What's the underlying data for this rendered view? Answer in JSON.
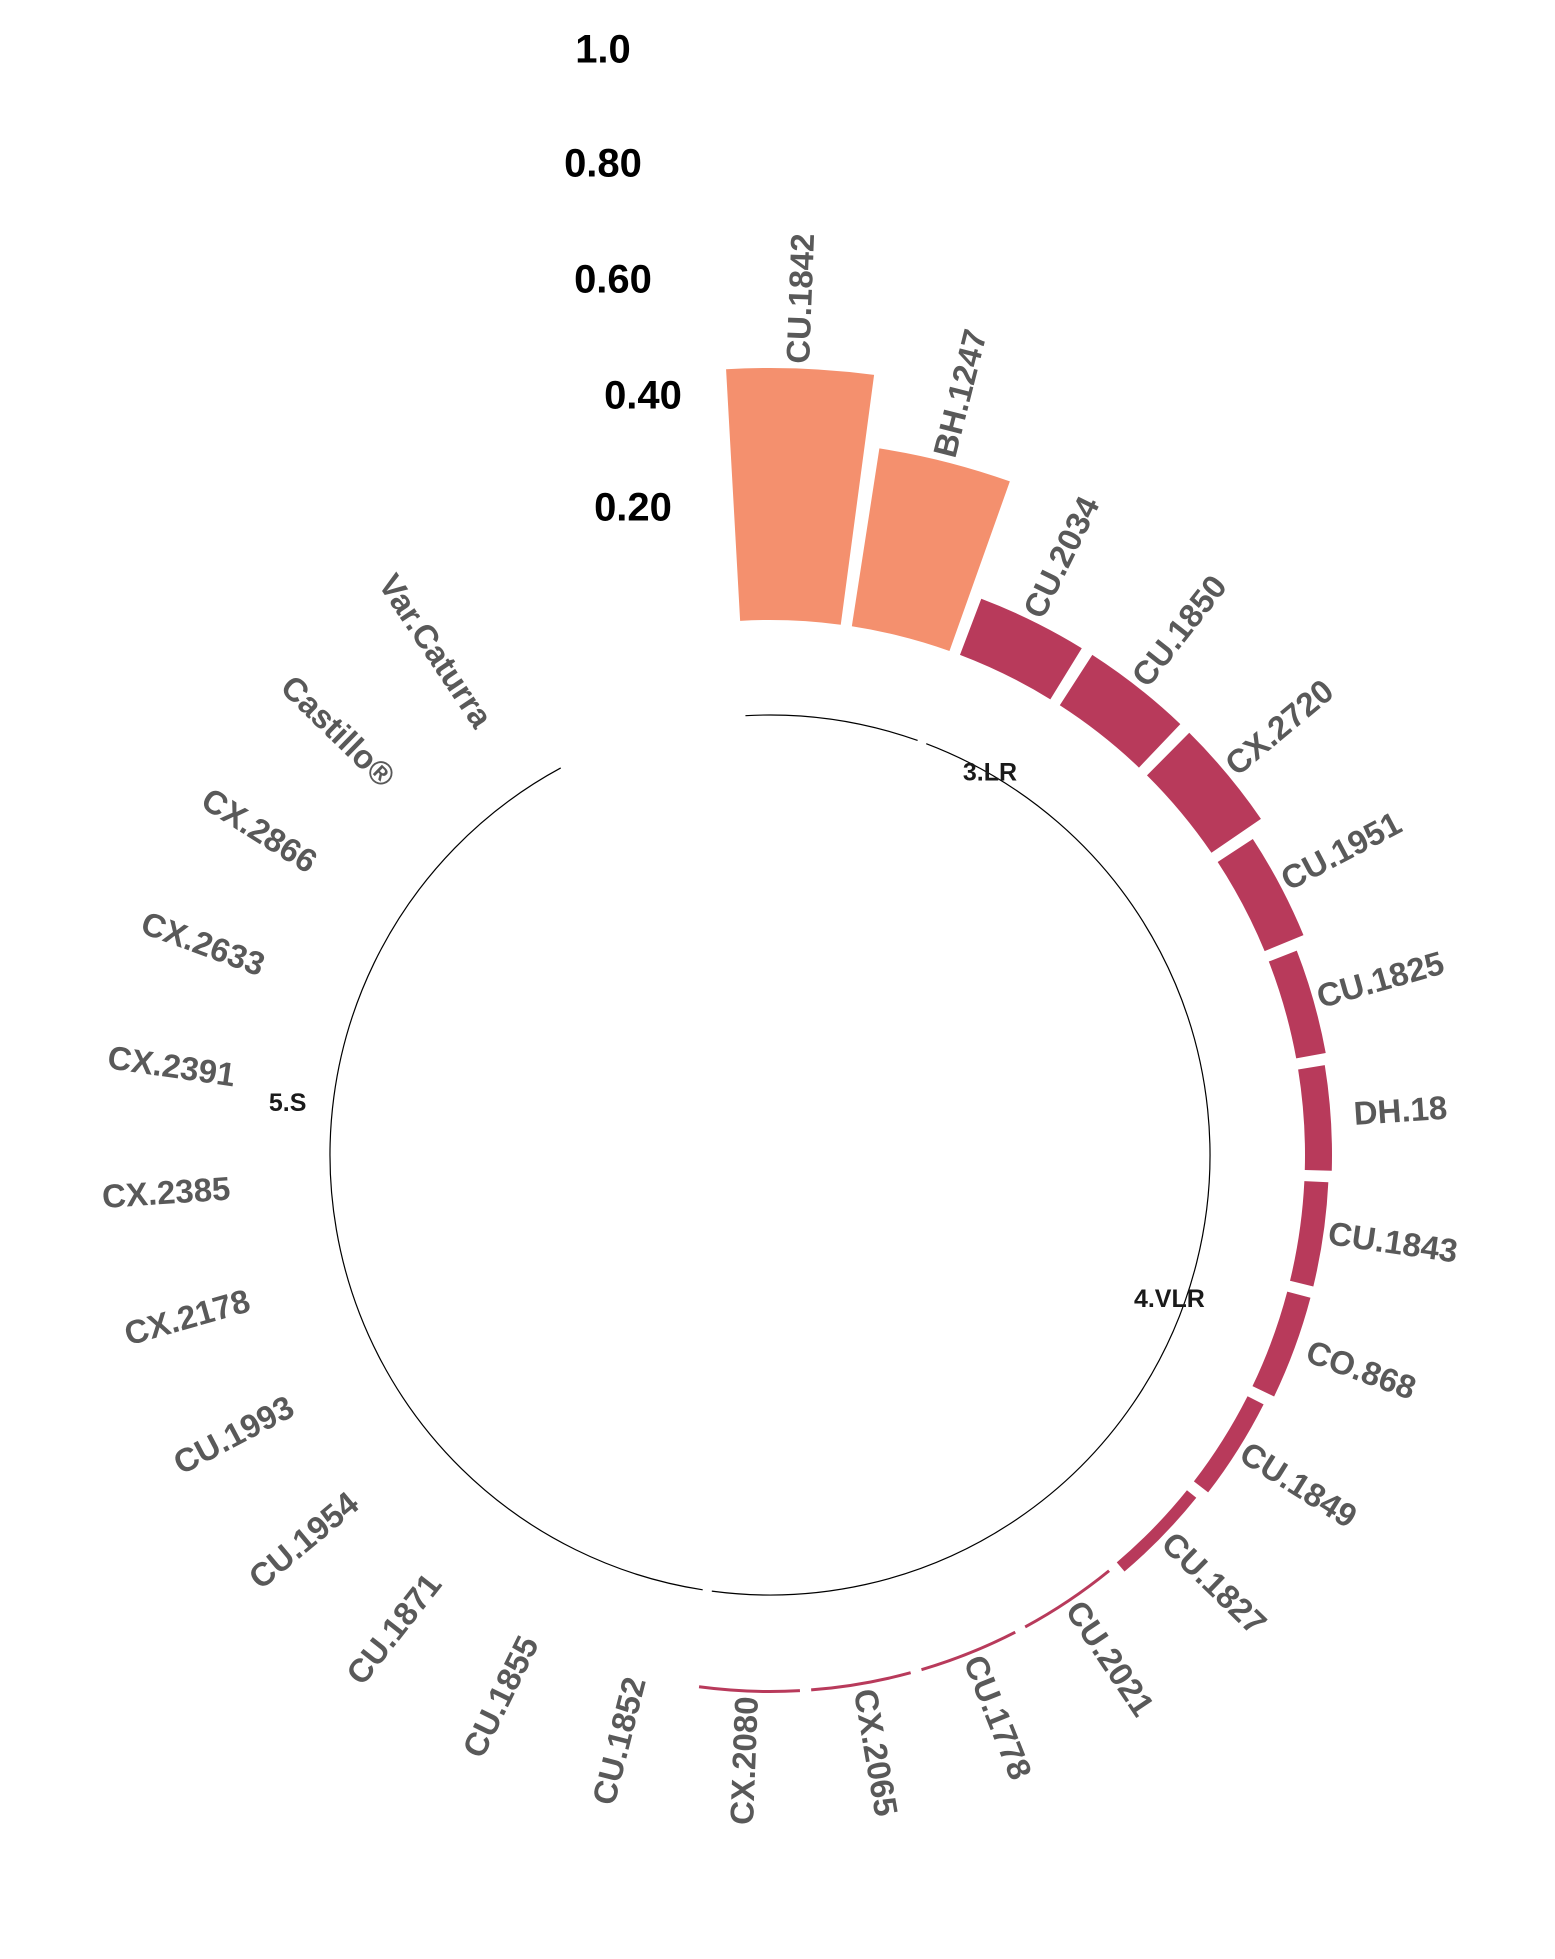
{
  "chart_data": {
    "type": "bar",
    "subtype": "circular",
    "title": "",
    "radial_axis_labels": [
      "0.20",
      "0.40",
      "0.60",
      "0.80",
      "1.0"
    ],
    "ylim": [
      0,
      1.0
    ],
    "groups": [
      {
        "name": "3.LR",
        "color": "#F4906E",
        "categories": [
          "CU.1842",
          "BH.1247"
        ],
        "values": [
          0.42,
          0.3
        ]
      },
      {
        "name": "4.VLR",
        "color": "#B83A5B",
        "categories": [
          "CU.2034",
          "CU.1850",
          "CX.2720",
          "CU.1951",
          "CU.1825",
          "DH.18",
          "CU.1843",
          "CO.868",
          "CU.1849",
          "CU.1827",
          "CU.2021",
          "CU.1778",
          "CX.2065",
          "CX.2080"
        ],
        "values": [
          0.1,
          0.1,
          0.1,
          0.07,
          0.05,
          0.045,
          0.04,
          0.04,
          0.03,
          0.02,
          0.004,
          0.003,
          0.003,
          0.002
        ]
      },
      {
        "name": "5.S",
        "color": "#B83A5B",
        "categories": [
          "CU.1852",
          "CU.1855",
          "CU.1871",
          "CU.1954",
          "CU.1993",
          "CX.2178",
          "CX.2385",
          "CX.2391",
          "CX.2633",
          "CX.2866",
          "Castillo®",
          "Var.Caturra"
        ],
        "values": [
          0,
          0,
          0,
          0,
          0,
          0,
          0,
          0,
          0,
          0,
          0,
          0
        ]
      }
    ]
  }
}
